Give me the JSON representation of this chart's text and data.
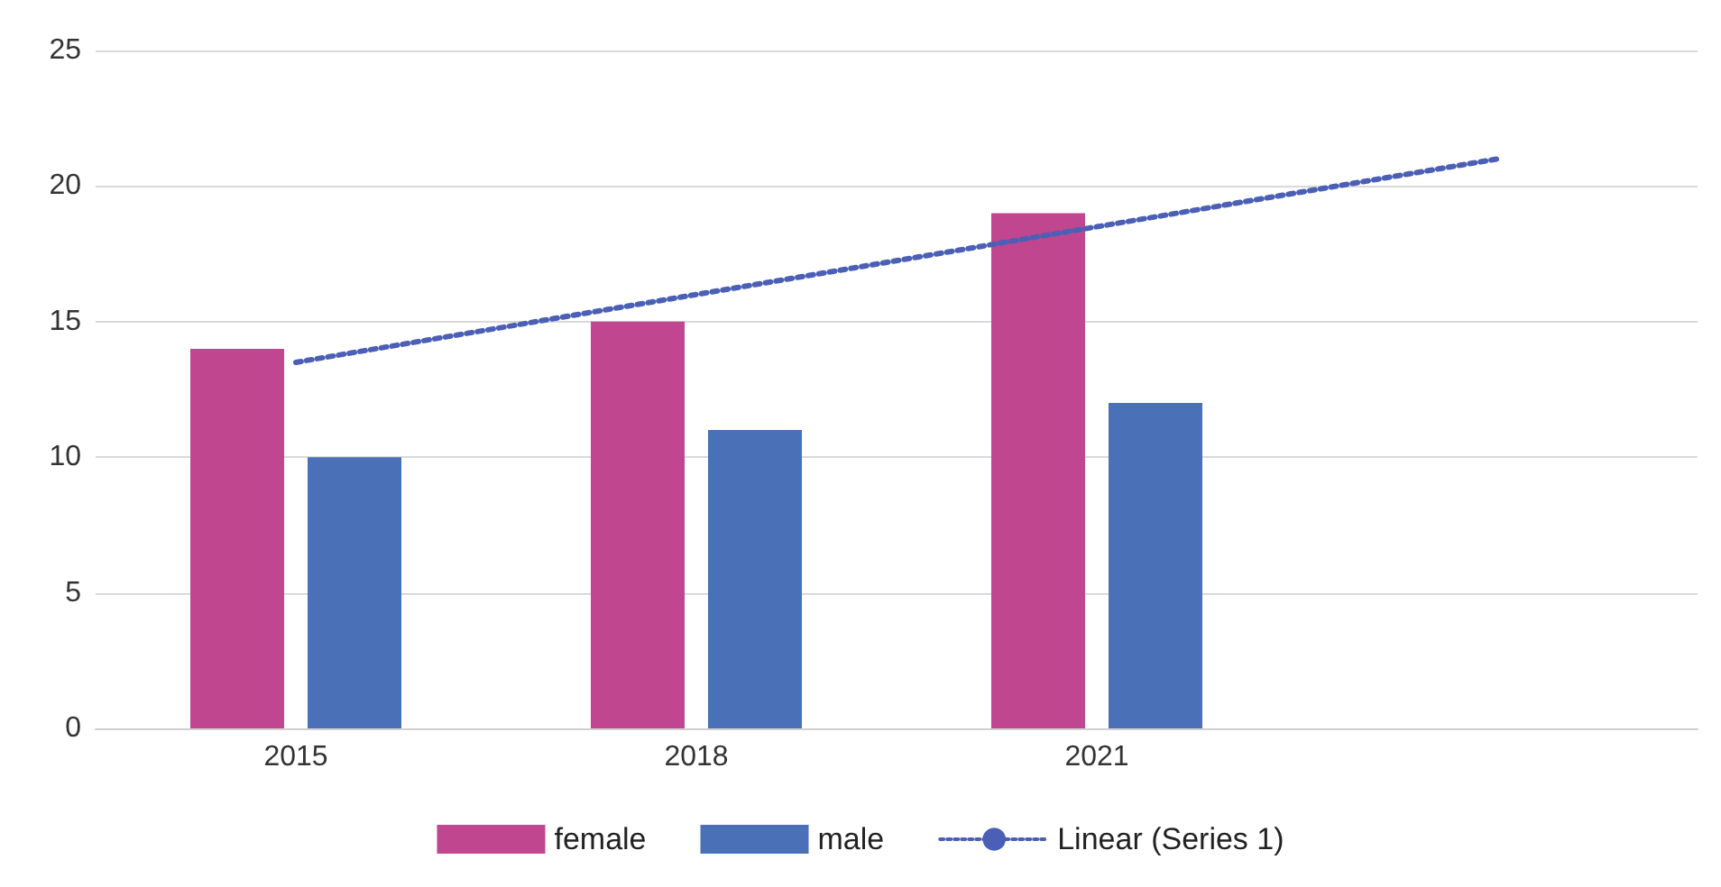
{
  "chart_data": {
    "type": "bar",
    "categories": [
      "2015",
      "2018",
      "2021",
      null
    ],
    "series": [
      {
        "name": "female",
        "color": "#c0468f",
        "values": [
          14,
          15,
          19,
          null
        ]
      },
      {
        "name": "male",
        "color": "#4a70b8",
        "values": [
          10,
          11,
          12,
          null
        ]
      },
      {
        "name": "Linear (Series 1)",
        "type": "line",
        "color": "#4a5fb5",
        "line_style": "dotted",
        "marker": "none",
        "values": [
          13.5,
          16,
          18.5,
          21
        ]
      }
    ],
    "ylim": [
      0,
      25
    ],
    "yticks": [
      0,
      5,
      10,
      15,
      20,
      25
    ],
    "grid": "y",
    "legend": "bottom"
  }
}
